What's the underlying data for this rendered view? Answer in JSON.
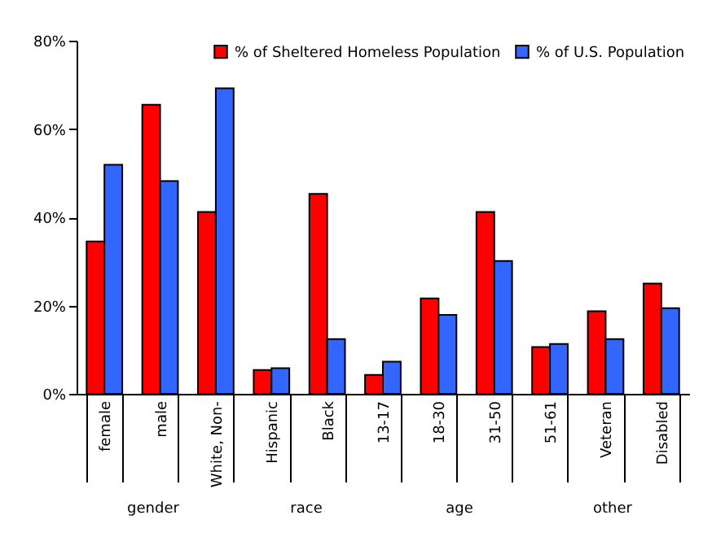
{
  "chart_data": {
    "type": "bar",
    "categories": [
      "female",
      "male",
      "White, Non-",
      "Hispanic",
      "Black",
      "13-17",
      "18-30",
      "31-50",
      "51-61",
      "Veteran",
      "Disabled"
    ],
    "series": [
      {
        "name": "% of Sheltered Homeless Population",
        "color": "#ff0000",
        "values": [
          34.5,
          65.5,
          41.2,
          5.4,
          45.3,
          4.3,
          21.6,
          41.2,
          10.6,
          18.7,
          25.0
        ]
      },
      {
        "name": "% of U.S. Population",
        "color": "#3366ff",
        "values": [
          51.9,
          48.2,
          69.2,
          5.8,
          12.4,
          7.3,
          17.9,
          30.1,
          11.3,
          12.4,
          19.4
        ]
      }
    ],
    "ylim": [
      0,
      80
    ],
    "yticks": [
      {
        "value": 0,
        "label": "0%"
      },
      {
        "value": 20,
        "label": "20%"
      },
      {
        "value": 40,
        "label": "40%"
      },
      {
        "value": 60,
        "label": "60%"
      },
      {
        "value": 80,
        "label": "80%"
      }
    ],
    "annotations": [
      "gender",
      "race",
      "age",
      "other"
    ],
    "grid": false,
    "legend": "top right"
  }
}
